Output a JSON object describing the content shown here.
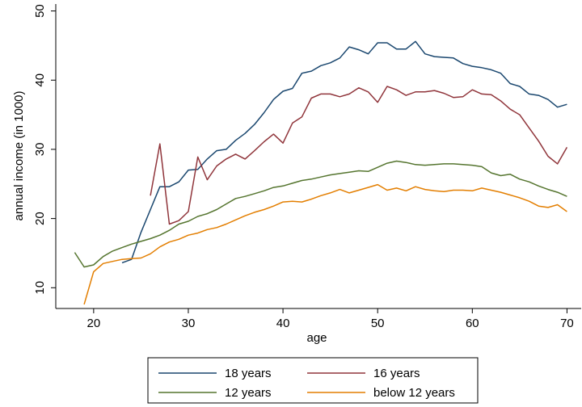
{
  "chart_data": {
    "type": "line",
    "title": "",
    "xlabel": "age",
    "ylabel": "annual income (in 1000)",
    "xlim": [
      16,
      71.5
    ],
    "ylim": [
      7,
      51
    ],
    "x_ticks": [
      20,
      30,
      40,
      50,
      60,
      70
    ],
    "y_ticks": [
      10,
      20,
      30,
      40,
      50
    ],
    "grid": false,
    "legend_position": "bottom",
    "series": [
      {
        "name": "18 years",
        "color": "#1a476f",
        "x": [
          23,
          24,
          25,
          26,
          27,
          28,
          29,
          30,
          31,
          32,
          33,
          34,
          35,
          36,
          37,
          38,
          39,
          40,
          41,
          42,
          43,
          44,
          45,
          46,
          47,
          48,
          49,
          50,
          51,
          52,
          53,
          54,
          55,
          56,
          57,
          58,
          59,
          60,
          61,
          62,
          63,
          64,
          65,
          66,
          67,
          68,
          69,
          70
        ],
        "y": [
          13.6,
          14.1,
          18.0,
          21.3,
          24.6,
          24.6,
          25.3,
          27.0,
          27.1,
          28.6,
          29.8,
          30.0,
          31.3,
          32.3,
          33.6,
          35.3,
          37.2,
          38.4,
          38.8,
          41.0,
          41.3,
          42.1,
          42.5,
          43.2,
          44.8,
          44.4,
          43.8,
          45.4,
          45.4,
          44.5,
          44.5,
          45.6,
          43.8,
          43.4,
          43.3,
          43.2,
          42.4,
          42.0,
          41.8,
          41.5,
          41.0,
          39.5,
          39.1,
          38.0,
          37.8,
          37.2,
          36.1,
          36.5
        ]
      },
      {
        "name": "16 years",
        "color": "#90353b",
        "x": [
          26,
          27,
          28,
          29,
          30,
          31,
          32,
          33,
          34,
          35,
          36,
          37,
          38,
          39,
          40,
          41,
          42,
          43,
          44,
          45,
          46,
          47,
          48,
          49,
          50,
          51,
          52,
          53,
          54,
          55,
          56,
          57,
          58,
          59,
          60,
          61,
          62,
          63,
          64,
          65,
          66,
          67,
          68,
          69,
          70
        ],
        "y": [
          23.3,
          30.8,
          19.2,
          19.7,
          21.0,
          28.9,
          25.6,
          27.6,
          28.6,
          29.3,
          28.6,
          29.8,
          31.1,
          32.2,
          30.9,
          33.8,
          34.7,
          37.4,
          38.0,
          38.0,
          37.6,
          38.0,
          38.9,
          38.3,
          36.8,
          39.1,
          38.6,
          37.8,
          38.3,
          38.3,
          38.5,
          38.1,
          37.5,
          37.6,
          38.6,
          38.0,
          37.9,
          37.0,
          35.8,
          35.0,
          33.1,
          31.2,
          29.0,
          27.9,
          30.3
        ]
      },
      {
        "name": "12 years",
        "color": "#55752f",
        "x": [
          18,
          19,
          20,
          21,
          22,
          23,
          24,
          25,
          26,
          27,
          28,
          29,
          30,
          31,
          32,
          33,
          34,
          35,
          36,
          37,
          38,
          39,
          40,
          41,
          42,
          43,
          44,
          45,
          46,
          47,
          48,
          49,
          50,
          51,
          52,
          53,
          54,
          55,
          56,
          57,
          58,
          59,
          60,
          61,
          62,
          63,
          64,
          65,
          66,
          67,
          68,
          69,
          70
        ],
        "y": [
          15.1,
          13.0,
          13.3,
          14.5,
          15.3,
          15.8,
          16.3,
          16.7,
          17.1,
          17.6,
          18.3,
          19.2,
          19.6,
          20.3,
          20.7,
          21.3,
          22.1,
          22.9,
          23.2,
          23.6,
          24.0,
          24.5,
          24.7,
          25.1,
          25.5,
          25.7,
          26.0,
          26.3,
          26.5,
          26.7,
          26.9,
          26.8,
          27.4,
          28.0,
          28.3,
          28.1,
          27.8,
          27.7,
          27.8,
          27.9,
          27.9,
          27.8,
          27.7,
          27.5,
          26.6,
          26.2,
          26.4,
          25.7,
          25.3,
          24.7,
          24.2,
          23.8,
          23.2
        ]
      },
      {
        "name": "below 12 years",
        "color": "#e37e00",
        "x": [
          19,
          20,
          21,
          22,
          23,
          24,
          25,
          26,
          27,
          28,
          29,
          30,
          31,
          32,
          33,
          34,
          35,
          36,
          37,
          38,
          39,
          40,
          41,
          42,
          43,
          44,
          45,
          46,
          47,
          48,
          49,
          50,
          51,
          52,
          53,
          54,
          55,
          56,
          57,
          58,
          59,
          60,
          61,
          62,
          63,
          64,
          65,
          66,
          67,
          68,
          69,
          70
        ],
        "y": [
          7.6,
          12.3,
          13.5,
          13.8,
          14.1,
          14.2,
          14.3,
          14.9,
          15.9,
          16.6,
          17.0,
          17.6,
          17.9,
          18.4,
          18.7,
          19.2,
          19.8,
          20.4,
          20.9,
          21.3,
          21.8,
          22.4,
          22.5,
          22.4,
          22.8,
          23.3,
          23.7,
          24.2,
          23.7,
          24.1,
          24.5,
          24.9,
          24.1,
          24.4,
          24.0,
          24.6,
          24.2,
          24.0,
          23.9,
          24.1,
          24.1,
          24.0,
          24.4,
          24.1,
          23.8,
          23.4,
          23.0,
          22.5,
          21.8,
          21.6,
          22.0,
          21.0
        ]
      }
    ]
  }
}
